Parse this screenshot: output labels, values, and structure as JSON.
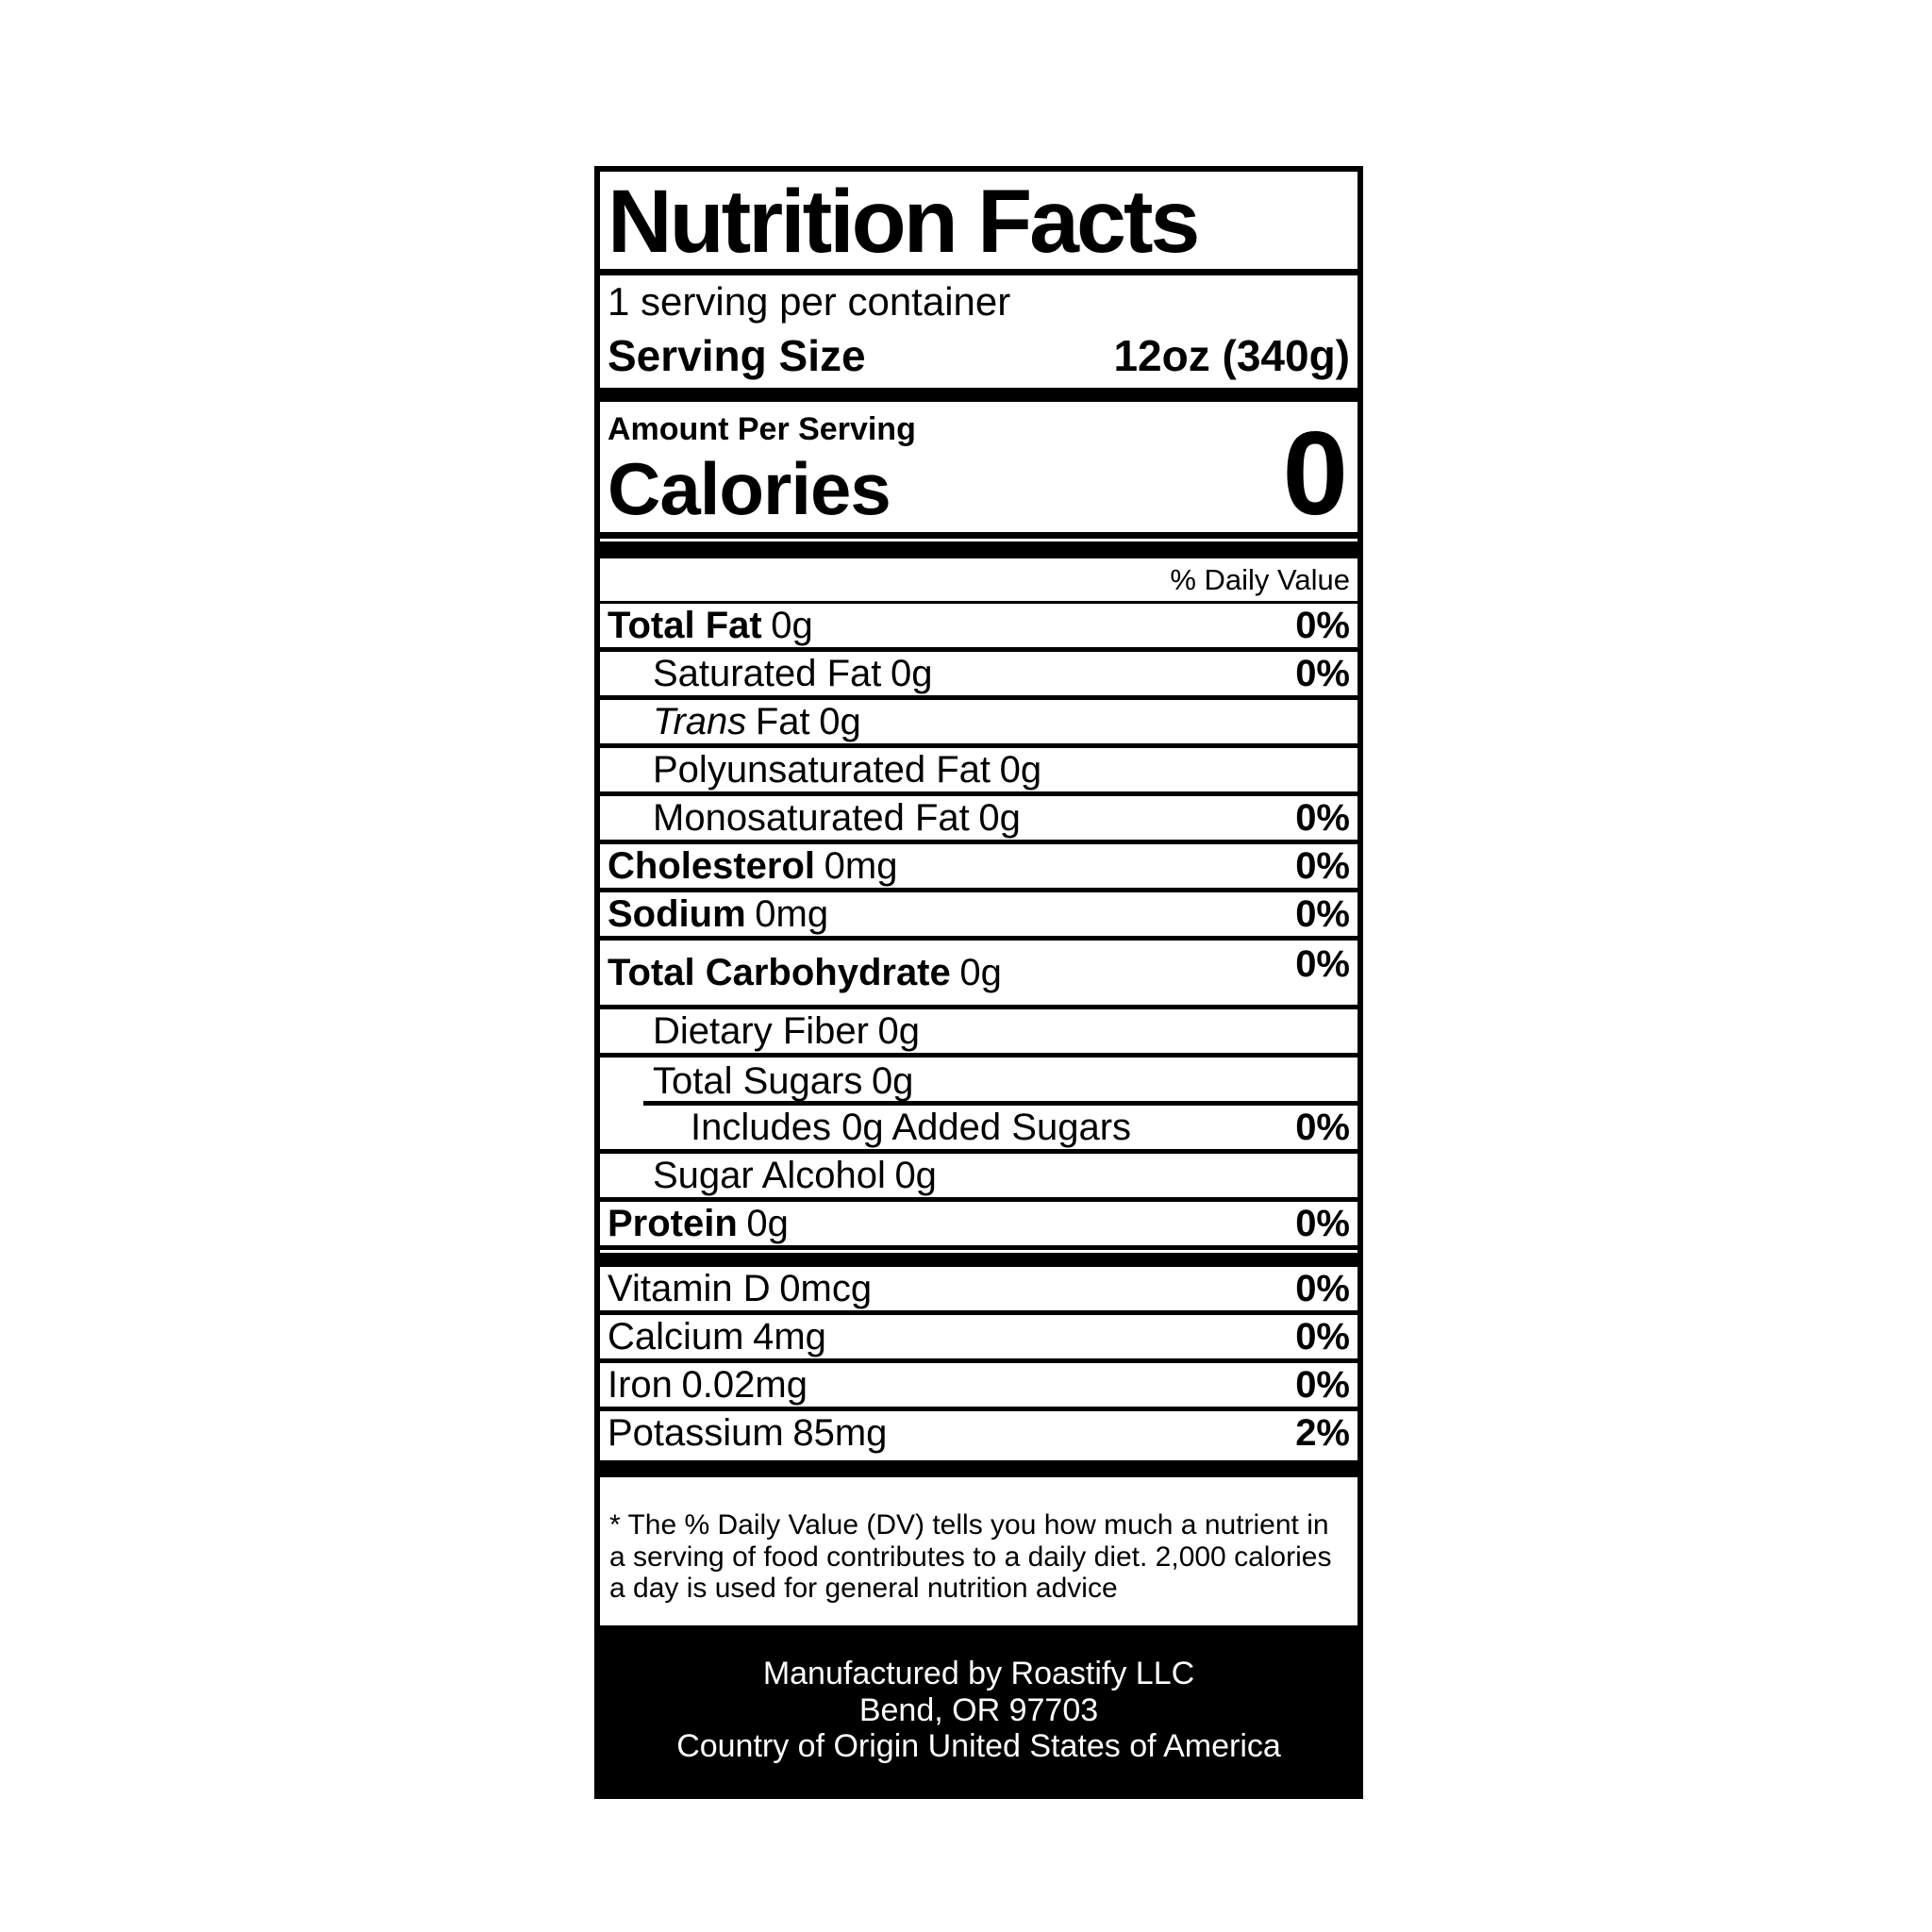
{
  "label": {
    "title": "Nutrition Facts",
    "servings_per_container": "1 serving per container",
    "serving_size_label": "Serving Size",
    "serving_size_value": "12oz (340g)",
    "amount_per_serving": "Amount Per Serving",
    "calories_label": "Calories",
    "calories_value": "0",
    "daily_value_header": "% Daily Value",
    "nutrients": [
      {
        "name": "Total Fat",
        "amount": "0g",
        "dv": "0%"
      },
      {
        "name": "Saturated Fat",
        "amount": "0g",
        "dv": "0%"
      },
      {
        "name_italic": "Trans",
        "name_rest": "Fat",
        "amount": "0g"
      },
      {
        "name": "Polyunsaturated Fat",
        "amount": "0g"
      },
      {
        "name": "Monosaturated Fat",
        "amount": "0g",
        "dv": "0%"
      },
      {
        "name": "Cholesterol",
        "amount": "0mg",
        "dv": "0%"
      },
      {
        "name": "Sodium",
        "amount": "0mg",
        "dv": "0%"
      },
      {
        "name": "Total Carbohydrate",
        "amount": "0g",
        "dv": "0%"
      },
      {
        "name": "Dietary Fiber",
        "amount": "0g"
      },
      {
        "name": "Total Sugars",
        "amount": "0g"
      },
      {
        "name": "Includes 0g Added Sugars",
        "dv": "0%"
      },
      {
        "name": "Sugar Alcohol",
        "amount": "0g"
      },
      {
        "name": "Protein",
        "amount": "0g",
        "dv": "0%"
      }
    ],
    "vitamins": [
      {
        "name": "Vitamin D",
        "amount": "0mcg",
        "dv": "0%"
      },
      {
        "name": "Calcium",
        "amount": "4mg",
        "dv": "0%"
      },
      {
        "name": "Iron",
        "amount": "0.02mg",
        "dv": "0%"
      },
      {
        "name": "Potassium",
        "amount": "85mg",
        "dv": "2%"
      }
    ],
    "footnote": {
      "lines": [
        "* The % Daily Value (DV) tells you how much a nutrient in",
        "a serving of food contributes to a daily diet. 2,000 calories",
        "a day is used for general nutrition advice"
      ]
    },
    "footer": {
      "lines": [
        "Manufactured by Roastify LLC",
        "Bend, OR 97703",
        "Country of Origin United States of America"
      ]
    },
    "colors": {
      "ink": "#000000",
      "paper": "#ffffff",
      "footer_bg": "#000000",
      "footer_text": "#ffffff"
    }
  }
}
